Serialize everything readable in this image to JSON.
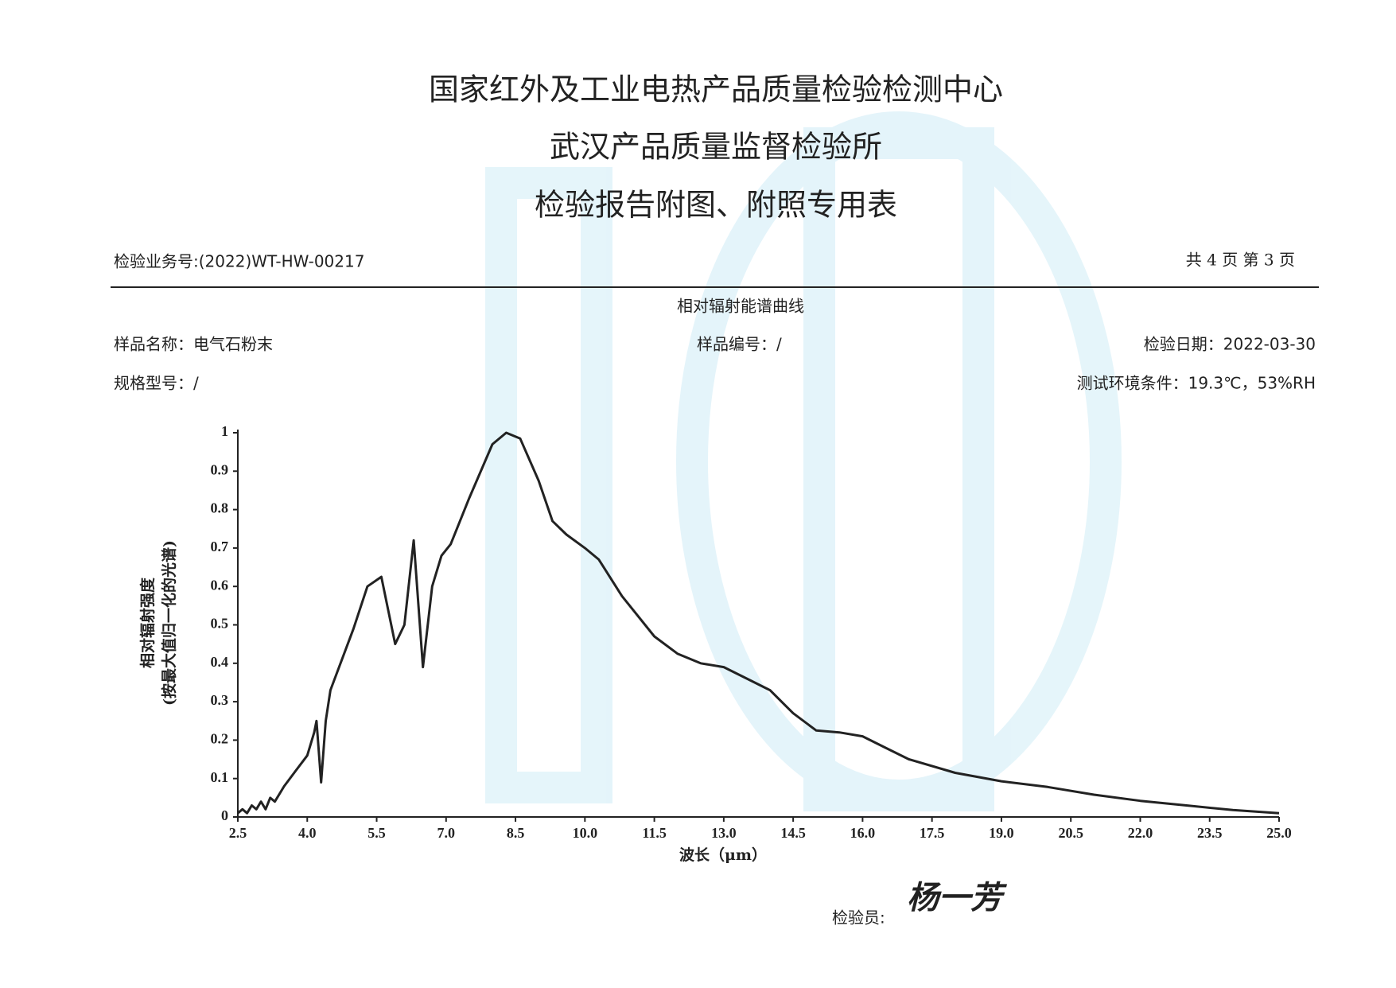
{
  "header": {
    "title_lines": [
      "国家红外及工业电热产品质量检验检测中心",
      "武汉产品质量监督检验所",
      "检验报告附图、附照专用表"
    ],
    "report_no": "检验业务号:(2022)WT-HW-00217",
    "page_info": "共 4 页 第 3 页"
  },
  "info": {
    "sample_name": "样品名称：电气石粉末",
    "sample_no": "样品编号：/",
    "test_date": "检验日期：2022-03-30",
    "spec": "规格型号：/",
    "environment": "测试环境条件：19.3℃，53%RH"
  },
  "inspector": {
    "label": "检验员:",
    "signature": "杨一芳"
  },
  "chart_data": {
    "type": "line",
    "title": "相对辐射能谱曲线",
    "xlabel": "波长（μm）",
    "ylabel": [
      "相对辐射强度",
      "(按最大值归一化的光谱)"
    ],
    "x": [
      2.5,
      2.6,
      2.7,
      2.8,
      2.9,
      3.0,
      3.1,
      3.2,
      3.3,
      3.5,
      3.75,
      4.0,
      4.15,
      4.2,
      4.3,
      4.4,
      4.5,
      5.0,
      5.3,
      5.6,
      5.9,
      6.1,
      6.3,
      6.5,
      6.7,
      6.9,
      7.1,
      7.5,
      8.0,
      8.3,
      8.6,
      9.0,
      9.3,
      9.6,
      10.0,
      10.3,
      10.8,
      11.5,
      12.0,
      12.5,
      13.0,
      13.5,
      14.0,
      14.5,
      15.0,
      15.5,
      16.0,
      16.5,
      17.0,
      18.0,
      19.0,
      20.0,
      21.0,
      22.0,
      23.0,
      24.0,
      25.0
    ],
    "series": [
      {
        "name": "相对辐射强度",
        "color": "#222222",
        "values": [
          0.01,
          0.02,
          0.01,
          0.03,
          0.02,
          0.04,
          0.02,
          0.05,
          0.04,
          0.08,
          0.12,
          0.16,
          0.22,
          0.25,
          0.09,
          0.25,
          0.33,
          0.49,
          0.6,
          0.625,
          0.45,
          0.5,
          0.72,
          0.39,
          0.6,
          0.68,
          0.71,
          0.83,
          0.97,
          1.0,
          0.985,
          0.875,
          0.77,
          0.735,
          0.7,
          0.67,
          0.575,
          0.47,
          0.425,
          0.4,
          0.39,
          0.36,
          0.33,
          0.27,
          0.225,
          0.22,
          0.21,
          0.18,
          0.15,
          0.115,
          0.093,
          0.078,
          0.058,
          0.042,
          0.03,
          0.018,
          0.01
        ]
      }
    ],
    "xlim": [
      2.5,
      25
    ],
    "ylim": [
      0,
      1
    ],
    "xticks": [
      2.5,
      {
        "value": 4,
        "label": "4.0"
      },
      5.5,
      {
        "value": 7,
        "label": "7.0"
      },
      8.5,
      {
        "value": 10,
        "label": "10.0"
      },
      11.5,
      {
        "value": 13,
        "label": "13.0"
      },
      14.5,
      {
        "value": 16,
        "label": "16.0"
      },
      17.5,
      {
        "value": 19,
        "label": "19.0"
      },
      20.5,
      {
        "value": 22,
        "label": "22.0"
      },
      23.5,
      {
        "value": 25,
        "label": "25.0"
      }
    ],
    "yticks": [
      0,
      0.1,
      0.2,
      0.3,
      0.4,
      0.5,
      0.6,
      0.7,
      0.8,
      0.9,
      1
    ]
  }
}
